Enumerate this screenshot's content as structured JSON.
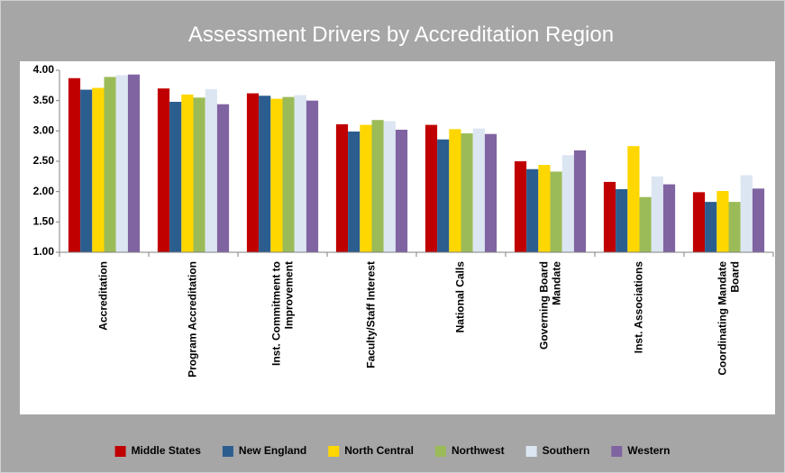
{
  "chart_data": {
    "type": "bar",
    "title": "Assessment Drivers by Accreditation Region",
    "categories": [
      "Accreditation",
      "Program Accreditation",
      "Inst. Commitment to Improvement",
      "Faculty/Staff Interest",
      "National Calls",
      "Governing Board Mandate",
      "Inst. Associations",
      "Coordinating Mandate Board"
    ],
    "series": [
      {
        "name": "Middle States",
        "color": "#c00000",
        "values": [
          3.87,
          3.7,
          3.62,
          3.11,
          3.1,
          2.5,
          2.16,
          1.99
        ]
      },
      {
        "name": "New England",
        "color": "#2b5d8f",
        "values": [
          3.68,
          3.48,
          3.58,
          2.99,
          2.86,
          2.37,
          2.04,
          1.83
        ]
      },
      {
        "name": "North Central",
        "color": "#ffd700",
        "values": [
          3.71,
          3.6,
          3.53,
          3.1,
          3.03,
          2.44,
          2.75,
          2.01
        ]
      },
      {
        "name": "Northwest",
        "color": "#9bbb59",
        "values": [
          3.89,
          3.55,
          3.56,
          3.18,
          2.96,
          2.33,
          1.91,
          1.83
        ]
      },
      {
        "name": "Southern",
        "color": "#dce6f2",
        "values": [
          3.92,
          3.69,
          3.59,
          3.16,
          3.04,
          2.6,
          2.25,
          2.27
        ]
      },
      {
        "name": "Western",
        "color": "#8064a2",
        "values": [
          3.93,
          3.44,
          3.5,
          3.02,
          2.95,
          2.68,
          2.12,
          2.05
        ]
      }
    ],
    "ylim": [
      1,
      4
    ],
    "yticks": [
      {
        "value": 1,
        "label": "1.00"
      },
      {
        "value": 1.5,
        "label": "1.50"
      },
      {
        "value": 2,
        "label": "2.00"
      },
      {
        "value": 2.5,
        "label": "2.50"
      },
      {
        "value": 3,
        "label": "3.00"
      },
      {
        "value": 3.5,
        "label": "3.50"
      },
      {
        "value": 4,
        "label": "4.00"
      }
    ],
    "legend": "bottom"
  }
}
